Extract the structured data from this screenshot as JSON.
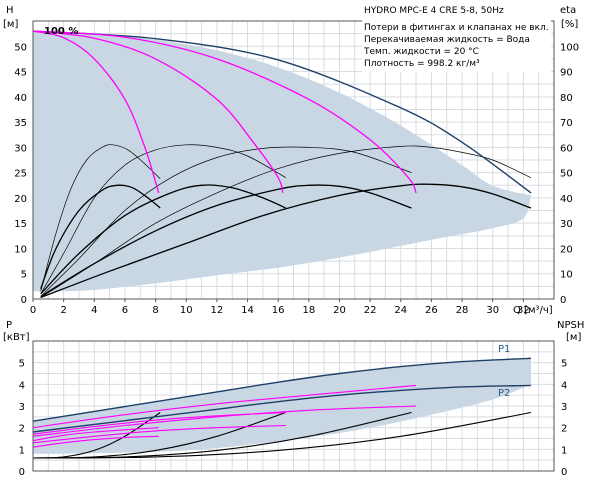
{
  "title": "HYDRO MPC-E 4 CRE 5-8, 50Hz",
  "info_lines": [
    "Потери в фитингах и клапанах не вкл.",
    "Перекачиваемая жидкость = Вода",
    "Темп. жидкости = 20 °C",
    "Плотность = 998.2 кг/м³"
  ],
  "hundred_label": "100 %",
  "colors": {
    "full_speed": "#1e3f66",
    "reduced_speed": "#ff00ff",
    "envelope_fill": "#c9d6e3",
    "grid": "#d7dce2",
    "efficiency_curves": "#000000"
  },
  "chart_data": [
    {
      "type": "line",
      "name": "head",
      "ylabel_top": "H",
      "ylabel_unit": "[м]",
      "ylabel2_top": "eta",
      "ylabel2_unit": "[%]",
      "xlabel": "Q [м³/ч]",
      "xlim": [
        0,
        34
      ],
      "ylim": [
        0,
        55
      ],
      "y2lim": [
        0,
        110
      ],
      "x_ticks": [
        0,
        2,
        4,
        6,
        8,
        10,
        12,
        14,
        16,
        18,
        20,
        22,
        24,
        26,
        28,
        30,
        32
      ],
      "y_ticks": [
        0,
        5,
        10,
        15,
        20,
        25,
        30,
        35,
        40,
        45,
        50
      ],
      "y2_ticks": [
        0,
        10,
        20,
        30,
        40,
        50,
        60,
        70,
        80,
        90,
        100
      ],
      "grid": true,
      "envelope": {
        "upper": [
          [
            0,
            53
          ],
          [
            4,
            52.6
          ],
          [
            8,
            51.3
          ],
          [
            12,
            49.2
          ],
          [
            16,
            45.8
          ],
          [
            20,
            40.8
          ],
          [
            24,
            34.3
          ],
          [
            28,
            26.5
          ],
          [
            30,
            22.4
          ],
          [
            32.5,
            20.5
          ]
        ],
        "lower": [
          [
            32.5,
            20.5
          ],
          [
            32,
            16
          ],
          [
            30,
            14
          ],
          [
            27,
            12.3
          ],
          [
            24,
            10.5
          ],
          [
            20,
            8.2
          ],
          [
            16,
            6.2
          ],
          [
            12,
            4.7
          ],
          [
            8,
            3.1
          ],
          [
            4,
            1.8
          ],
          [
            1.5,
            1.5
          ],
          [
            0,
            1.5
          ]
        ]
      },
      "series": [
        {
          "speed": "full",
          "pumps": 4,
          "points": [
            [
              0,
              53
            ],
            [
              8,
              51.5
            ],
            [
              16,
              47.3
            ],
            [
              24,
              37.8
            ],
            [
              28,
              31
            ],
            [
              32.5,
              21
            ]
          ]
        },
        {
          "speed": "reduced",
          "pumps": 4,
          "points": [
            [
              0,
              53
            ],
            [
              6,
              51.8
            ],
            [
              12,
              47.5
            ],
            [
              18,
              39.5
            ],
            [
              22,
              31.5
            ],
            [
              24.5,
              24
            ],
            [
              25,
              21
            ]
          ]
        },
        {
          "speed": "reduced",
          "pumps": 3,
          "points": [
            [
              0,
              53
            ],
            [
              4,
              51.6
            ],
            [
              8,
              47.5
            ],
            [
              12,
              39.5
            ],
            [
              14.5,
              30.5
            ],
            [
              16,
              24
            ],
            [
              16.3,
              21
            ]
          ]
        },
        {
          "speed": "reduced",
          "pumps": 2,
          "points": [
            [
              0,
              53
            ],
            [
              2,
              51.7
            ],
            [
              4,
              47.5
            ],
            [
              6,
              39.5
            ],
            [
              7.3,
              30
            ],
            [
              8.2,
              21
            ]
          ]
        }
      ],
      "efficiency_curves": [
        {
          "weight": "thin",
          "points": [
            [
              0.5,
              1.5
            ],
            [
              1.5,
              13
            ],
            [
              2.5,
              22
            ],
            [
              3.5,
              27.5
            ],
            [
              4.5,
              30
            ],
            [
              5.2,
              30.5
            ],
            [
              6.2,
              29.5
            ],
            [
              7.2,
              27
            ],
            [
              8.3,
              23.8
            ]
          ]
        },
        {
          "weight": "thin",
          "points": [
            [
              0.5,
              1
            ],
            [
              2,
              9
            ],
            [
              4,
              20
            ],
            [
              6,
              26.5
            ],
            [
              8,
              29.5
            ],
            [
              10,
              30.5
            ],
            [
              12,
              30
            ],
            [
              14,
              28.3
            ],
            [
              16.5,
              24
            ]
          ]
        },
        {
          "weight": "thin",
          "points": [
            [
              0.5,
              0.5
            ],
            [
              3,
              8
            ],
            [
              6,
              17.5
            ],
            [
              9,
              24
            ],
            [
              12,
              28
            ],
            [
              15,
              29.8
            ],
            [
              18,
              30
            ],
            [
              21,
              29
            ],
            [
              24.7,
              25
            ]
          ]
        },
        {
          "weight": "thin",
          "points": [
            [
              0.5,
              0.3
            ],
            [
              4,
              7
            ],
            [
              8,
              15
            ],
            [
              12,
              21
            ],
            [
              16,
              25.8
            ],
            [
              20,
              28.8
            ],
            [
              24,
              30.2
            ],
            [
              26,
              30
            ],
            [
              28,
              29
            ],
            [
              30,
              27.5
            ],
            [
              32.5,
              24
            ]
          ]
        },
        {
          "weight": "thick",
          "points": [
            [
              0.5,
              2
            ],
            [
              1.5,
              10
            ],
            [
              3,
              17.5
            ],
            [
              4.5,
              21.5
            ],
            [
              5.5,
              22.5
            ],
            [
              6.5,
              22
            ],
            [
              7.5,
              20
            ],
            [
              8.3,
              18
            ]
          ]
        },
        {
          "weight": "thick",
          "points": [
            [
              0.5,
              1
            ],
            [
              3,
              9
            ],
            [
              6,
              16.5
            ],
            [
              9,
              21
            ],
            [
              11,
              22.5
            ],
            [
              13,
              22
            ],
            [
              15,
              20
            ],
            [
              16.5,
              18
            ]
          ]
        },
        {
          "weight": "thick",
          "points": [
            [
              0.5,
              0.5
            ],
            [
              4,
              7
            ],
            [
              8,
              13.5
            ],
            [
              12,
              18.5
            ],
            [
              16,
              21.7
            ],
            [
              18,
              22.5
            ],
            [
              20,
              22.3
            ],
            [
              22,
              21
            ],
            [
              24.7,
              18
            ]
          ]
        },
        {
          "weight": "thick",
          "points": [
            [
              0.5,
              0.3
            ],
            [
              5,
              5.5
            ],
            [
              10,
              11
            ],
            [
              15,
              16.5
            ],
            [
              20,
              20.5
            ],
            [
              24,
              22.4
            ],
            [
              26,
              22.7
            ],
            [
              28,
              22.2
            ],
            [
              30,
              20.8
            ],
            [
              32.5,
              18
            ]
          ]
        }
      ]
    },
    {
      "type": "line",
      "name": "power_npsh",
      "ylabel_top": "P",
      "ylabel_unit": "[кВт]",
      "ylabel2_top": "NPSH",
      "ylabel2_unit": "[м]",
      "xlim": [
        0,
        34
      ],
      "ylim": [
        0,
        6
      ],
      "y2lim": [
        0,
        6
      ],
      "y_ticks": [
        0,
        1,
        2,
        3,
        4,
        5
      ],
      "y2_ticks": [
        0,
        1,
        2,
        3,
        4,
        5
      ],
      "grid": true,
      "series_labels": [
        "P1",
        "P2"
      ],
      "envelope": {
        "upper": [
          [
            0,
            2.3
          ],
          [
            4,
            2.75
          ],
          [
            8,
            3.2
          ],
          [
            12,
            3.65
          ],
          [
            16,
            4.1
          ],
          [
            20,
            4.5
          ],
          [
            24,
            4.82
          ],
          [
            28,
            5.05
          ],
          [
            32.5,
            5.2
          ]
        ],
        "lower": [
          [
            32.5,
            4.0
          ],
          [
            30,
            3.3
          ],
          [
            26,
            2.6
          ],
          [
            22,
            2.0
          ],
          [
            18,
            1.55
          ],
          [
            14,
            1.2
          ],
          [
            10,
            0.95
          ],
          [
            6,
            0.85
          ],
          [
            2,
            0.8
          ],
          [
            0,
            0.8
          ]
        ]
      },
      "series": [
        {
          "label": "P1",
          "speed": "full",
          "points": [
            [
              0,
              2.3
            ],
            [
              4,
              2.75
            ],
            [
              8,
              3.2
            ],
            [
              12,
              3.65
            ],
            [
              16,
              4.1
            ],
            [
              20,
              4.5
            ],
            [
              24,
              4.82
            ],
            [
              28,
              5.05
            ],
            [
              32.5,
              5.2
            ]
          ]
        },
        {
          "label": "P2",
          "speed": "full",
          "points": [
            [
              0,
              1.8
            ],
            [
              4,
              2.15
            ],
            [
              8,
              2.5
            ],
            [
              12,
              2.85
            ],
            [
              16,
              3.2
            ],
            [
              20,
              3.5
            ],
            [
              24,
              3.72
            ],
            [
              28,
              3.88
            ],
            [
              32.5,
              3.95
            ]
          ]
        },
        {
          "speed": "reduced",
          "points": [
            [
              0,
              2.0
            ],
            [
              6,
              2.6
            ],
            [
              12,
              3.1
            ],
            [
              18,
              3.5
            ],
            [
              25,
              3.95
            ]
          ]
        },
        {
          "speed": "reduced",
          "points": [
            [
              0,
              1.6
            ],
            [
              6,
              2.1
            ],
            [
              12,
              2.5
            ],
            [
              18,
              2.8
            ],
            [
              25,
              3.0
            ]
          ]
        },
        {
          "speed": "reduced",
          "points": [
            [
              0,
              1.7
            ],
            [
              4,
              2.05
            ],
            [
              8,
              2.35
            ],
            [
              12,
              2.55
            ],
            [
              16.5,
              2.7
            ]
          ]
        },
        {
          "speed": "reduced",
          "points": [
            [
              0,
              1.3
            ],
            [
              4,
              1.6
            ],
            [
              8,
              1.85
            ],
            [
              12,
              2.0
            ],
            [
              16.5,
              2.1
            ]
          ]
        },
        {
          "speed": "reduced",
          "points": [
            [
              0,
              1.4
            ],
            [
              2,
              1.65
            ],
            [
              4,
              1.8
            ],
            [
              6,
              1.9
            ],
            [
              8.2,
              2.0
            ]
          ]
        },
        {
          "speed": "reduced",
          "points": [
            [
              0,
              1.1
            ],
            [
              2,
              1.3
            ],
            [
              4,
              1.45
            ],
            [
              6,
              1.55
            ],
            [
              8.2,
              1.6
            ]
          ]
        }
      ],
      "npsh_curves": [
        {
          "points": [
            [
              0,
              0.6
            ],
            [
              2,
              0.65
            ],
            [
              4,
              0.95
            ],
            [
              6,
              1.6
            ],
            [
              8.3,
              2.7
            ]
          ]
        },
        {
          "points": [
            [
              0,
              0.6
            ],
            [
              4,
              0.65
            ],
            [
              8,
              0.95
            ],
            [
              12,
              1.6
            ],
            [
              16.5,
              2.7
            ]
          ]
        },
        {
          "points": [
            [
              0,
              0.6
            ],
            [
              6,
              0.65
            ],
            [
              12,
              0.95
            ],
            [
              18,
              1.6
            ],
            [
              24.7,
              2.7
            ]
          ]
        },
        {
          "points": [
            [
              0,
              0.6
            ],
            [
              8,
              0.65
            ],
            [
              16,
              0.95
            ],
            [
              24,
              1.6
            ],
            [
              32.5,
              2.7
            ]
          ]
        }
      ]
    }
  ]
}
